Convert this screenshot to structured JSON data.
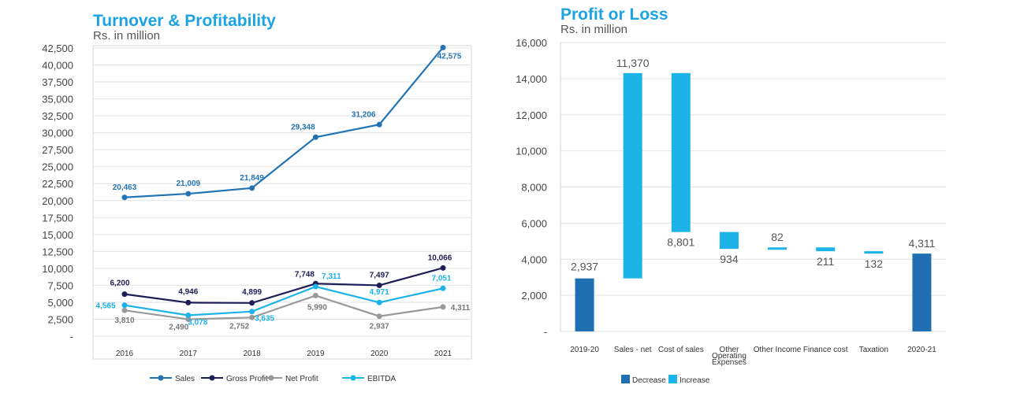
{
  "colors": {
    "accent": "#1ba3e3",
    "sales": "#2274b5",
    "gross_profit": "#1f1d55",
    "net_profit": "#999999",
    "ebitda": "#1cb3e8",
    "decrease": "#1f6fb2",
    "increase": "#1cb3e8"
  },
  "chart_data": [
    {
      "type": "line",
      "title": "Turnover & Profitability",
      "subtitle": "Rs. in million",
      "categories": [
        "2016",
        "2017",
        "2018",
        "2019",
        "2020",
        "2021"
      ],
      "ylim": [
        0,
        42500
      ],
      "yticks": [
        "42,500",
        "40,000",
        "37,500",
        "35,000",
        "32,500",
        "30,000",
        "27,500",
        "25,000",
        "22,500",
        "20,000",
        "17,500",
        "15,000",
        "12,500",
        "10,000",
        "7,500",
        "5,000",
        "2,500",
        "-"
      ],
      "grid": true,
      "legend_position": "bottom",
      "series": [
        {
          "name": "Sales",
          "values": [
            20463,
            21009,
            21849,
            29348,
            31206,
            42575
          ],
          "labels": [
            "20,463",
            "21,009",
            "21,849",
            "29,348",
            "31,206",
            "42,575"
          ]
        },
        {
          "name": "Gross Profit",
          "values": [
            6200,
            4946,
            4899,
            7748,
            7497,
            10066
          ],
          "labels": [
            "6,200",
            "4,946",
            "4,899",
            "7,748",
            "7,497",
            "10,066"
          ]
        },
        {
          "name": "Net Profit",
          "values": [
            3810,
            2490,
            2752,
            5990,
            2937,
            4311
          ],
          "labels": [
            "3,810",
            "2,490",
            "2,752",
            "5,990",
            "2,937",
            "4,311"
          ]
        },
        {
          "name": "EBITDA",
          "values": [
            4565,
            3078,
            3635,
            7311,
            4971,
            7051
          ],
          "labels": [
            "4,565",
            "3,078",
            "3,635",
            "7,311",
            "4,971",
            "7,051"
          ]
        }
      ]
    },
    {
      "type": "bar",
      "subtype": "waterfall",
      "title": "Profit or Loss",
      "subtitle": "Rs. in million",
      "categories": [
        "2019-20",
        "Sales - net",
        "Cost of sales",
        "Other Operating Expenses",
        "Other Income",
        "Finance cost",
        "Taxation",
        "2020-21"
      ],
      "category_lines": [
        [
          "2019-20"
        ],
        [
          "Sales - net"
        ],
        [
          "Cost of sales"
        ],
        [
          "Other",
          "Operating",
          "Expenses"
        ],
        [
          "Other Income"
        ],
        [
          "Finance cost"
        ],
        [
          "Taxation"
        ],
        [
          "2020-21"
        ]
      ],
      "ylim": [
        0,
        16000
      ],
      "yticks": [
        "16,000",
        "14,000",
        "12,000",
        "10,000",
        "8,000",
        "6,000",
        "4,000",
        "2,000",
        "-"
      ],
      "grid": true,
      "legend_position": "bottom-left",
      "legend": [
        "Decrease",
        "Increase"
      ],
      "bars": [
        {
          "kind": "total",
          "start": 0,
          "end": 2937,
          "label": "2,937"
        },
        {
          "kind": "increase",
          "start": 2937,
          "end": 14307,
          "label": "11,370"
        },
        {
          "kind": "increase",
          "start": 5506,
          "end": 14307,
          "label": "8,801"
        },
        {
          "kind": "increase",
          "start": 4572,
          "end": 5506,
          "label": "934"
        },
        {
          "kind": "increase",
          "start": 4572,
          "end": 4654,
          "label": "82"
        },
        {
          "kind": "increase",
          "start": 4443,
          "end": 4654,
          "label": "211"
        },
        {
          "kind": "increase",
          "start": 4311,
          "end": 4443,
          "label": "132"
        },
        {
          "kind": "total",
          "start": 0,
          "end": 4311,
          "label": "4,311"
        }
      ]
    }
  ]
}
